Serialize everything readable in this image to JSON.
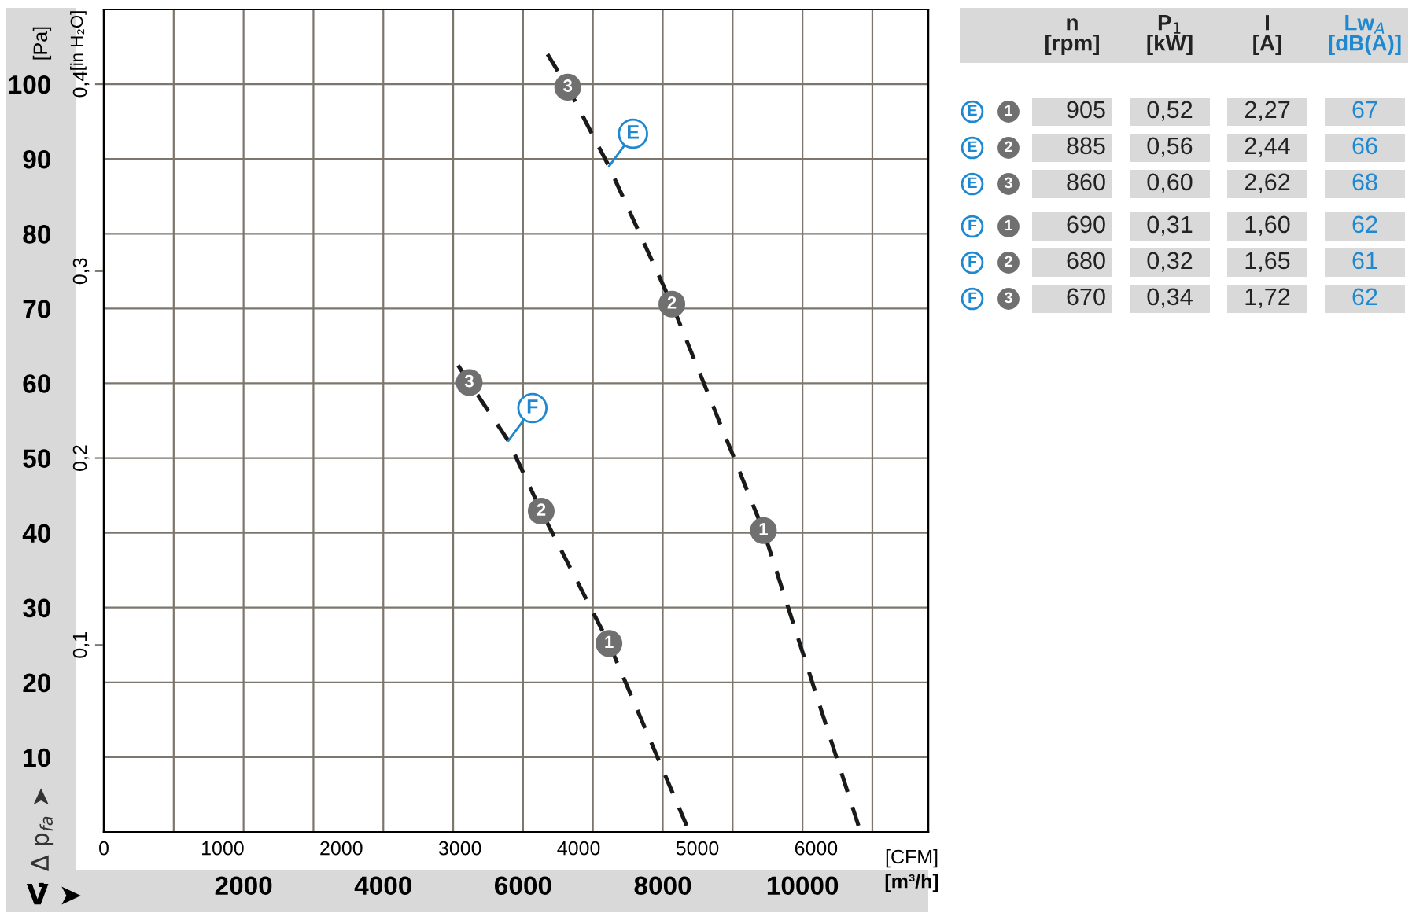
{
  "chart_data": [
    {
      "type": "line",
      "xlabel": "V̇ ➤",
      "ylabel": "Δ p$_{fa}$ ➤",
      "y2label": "[in H₂O]",
      "x2label": "[CFM]",
      "annotations": [
        "[Pa]",
        "[m³/h]",
        {
          "text": "3",
          "x": 6640,
          "y": 99.6
        },
        {
          "text": "2",
          "x": 8130,
          "y": 70.6
        },
        {
          "text": "1",
          "x": 9440,
          "y": 40.3
        },
        {
          "text": "3",
          "x": 5230,
          "y": 60.1
        },
        {
          "text": "2",
          "x": 6260,
          "y": 42.9
        },
        {
          "text": "1",
          "x": 7230,
          "y": 25.2
        }
      ],
      "series": [
        {
          "name": "E",
          "color": "#1a1a1a",
          "x": [
            6350,
            6640,
            7230,
            8130,
            9440,
            10830
          ],
          "values": [
            104,
            99.6,
            89,
            70.6,
            40.3,
            0
          ]
        },
        {
          "name": "F",
          "color": "#1a1a1a",
          "x": [
            5070,
            5230,
            5790,
            6260,
            7230,
            8380
          ],
          "values": [
            62.4,
            60.1,
            52.3,
            42.9,
            25.2,
            0
          ]
        }
      ],
      "xlim": [
        0,
        11800
      ],
      "ylim": [
        0,
        110
      ],
      "x2lim": [
        0,
        6945
      ],
      "y2lim": [
        0,
        0.44
      ],
      "xticks": [
        {
          "value": 1000,
          "label": null
        },
        2000,
        {
          "value": 3000,
          "label": null
        },
        4000,
        {
          "value": 5000,
          "label": null
        },
        6000,
        {
          "value": 7000,
          "label": null
        },
        8000,
        {
          "value": 9000,
          "label": null
        },
        10000,
        {
          "value": 11000,
          "label": null
        }
      ],
      "yticks": [
        10,
        20,
        30,
        40,
        50,
        60,
        70,
        80,
        90,
        100
      ],
      "x2ticks": [
        0,
        1000,
        2000,
        3000,
        4000,
        5000,
        6000
      ],
      "y2ticks": [
        {
          "value": 0.1,
          "label": "0,1"
        },
        {
          "value": 0.2,
          "label": "0,2"
        },
        {
          "value": 0.3,
          "label": "0,3"
        },
        {
          "value": 0.4,
          "label": "0,4"
        }
      ],
      "grid": true,
      "line_style": "dashed"
    },
    {
      "type": "other",
      "categories": [
        "n\n[rpm]",
        "P$_{1}$\n[kW]",
        "I\n[A]",
        "Lw$_{A}$\n[dB(A)]"
      ],
      "y_categories": [
        "E",
        "E",
        "E",
        "F",
        "F",
        "F"
      ],
      "y2_categories": [
        "1",
        "2",
        "3",
        "1",
        "2",
        "3"
      ],
      "cell_labels": [
        [
          "905",
          "0,52",
          "2,27",
          "67"
        ],
        [
          "885",
          "0,56",
          "2,44",
          "66"
        ],
        [
          "860",
          "0,60",
          "2,62",
          "68"
        ],
        [
          "690",
          "0,31",
          "1,60",
          "62"
        ],
        [
          "680",
          "0,32",
          "1,65",
          "61"
        ],
        [
          "670",
          "0,34",
          "1,72",
          "62"
        ]
      ]
    }
  ]
}
